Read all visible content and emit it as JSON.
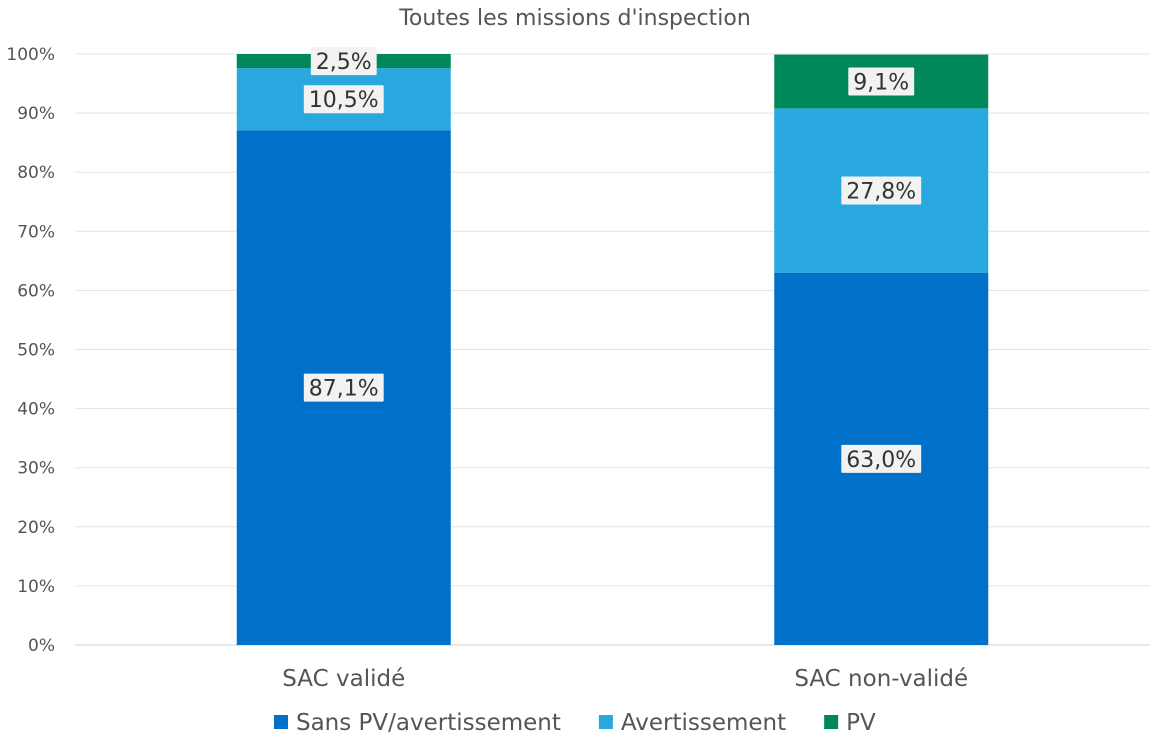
{
  "chart_data": {
    "type": "bar",
    "stacked": true,
    "title": "Toutes les missions d'inspection",
    "xlabel": "",
    "ylabel": "",
    "categories": [
      "SAC validé",
      "SAC non-validé"
    ],
    "series": [
      {
        "name": "Sans PV/avertissement",
        "values": [
          87.1,
          63.0
        ],
        "labels": [
          "87,1%",
          "63,0%"
        ],
        "color": "#0070C9"
      },
      {
        "name": "Avertissement",
        "values": [
          10.5,
          27.8
        ],
        "labels": [
          "10,5%",
          "27,8%"
        ],
        "color": "#29A8E0"
      },
      {
        "name": "PV",
        "values": [
          2.5,
          9.1
        ],
        "labels": [
          "2,5%",
          "9,1%"
        ],
        "color": "#00875A"
      }
    ],
    "ylim": [
      0,
      100
    ],
    "yticks": [
      0,
      10,
      20,
      30,
      40,
      50,
      60,
      70,
      80,
      90,
      100
    ],
    "ytick_labels": [
      "0%",
      "10%",
      "20%",
      "30%",
      "40%",
      "50%",
      "60%",
      "70%",
      "80%",
      "90%",
      "100%"
    ],
    "grid": true,
    "legend_position": "bottom"
  }
}
